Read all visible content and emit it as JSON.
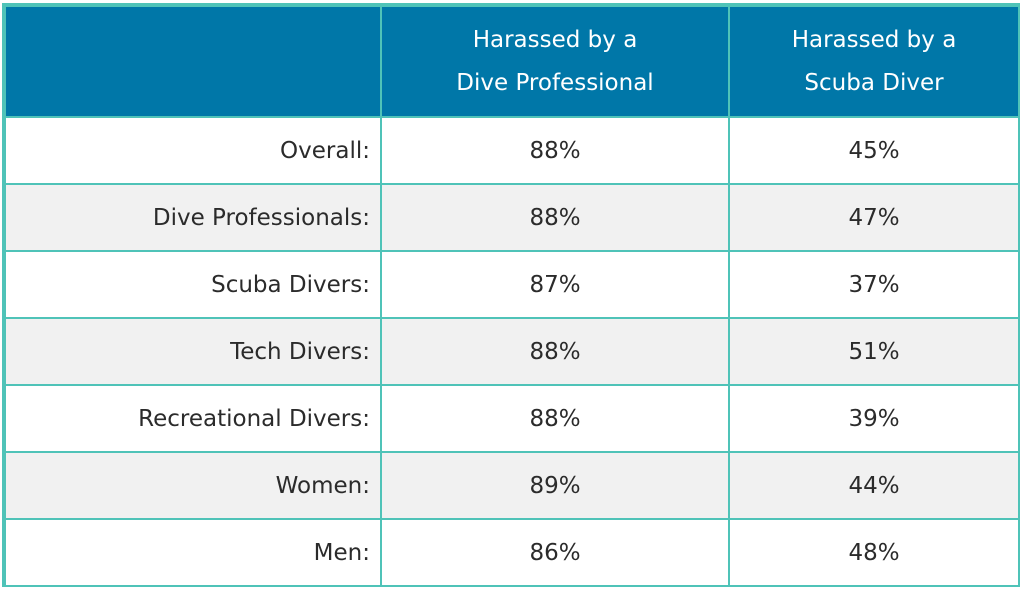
{
  "chart_data": {
    "type": "table",
    "columns": [
      "",
      "Harassed by a Dive Professional",
      "Harassed by a Scuba Diver"
    ],
    "header_lines": [
      [
        "Harassed by a",
        "Dive Professional"
      ],
      [
        "Harassed by a",
        "Scuba Diver"
      ]
    ],
    "rows": [
      {
        "label": "Overall:",
        "values": [
          "88%",
          "45%"
        ]
      },
      {
        "label": "Dive Professionals:",
        "values": [
          "88%",
          "47%"
        ]
      },
      {
        "label": "Scuba Divers:",
        "values": [
          "87%",
          "37%"
        ]
      },
      {
        "label": "Tech Divers:",
        "values": [
          "88%",
          "51%"
        ]
      },
      {
        "label": "Recreational Divers:",
        "values": [
          "88%",
          "39%"
        ]
      },
      {
        "label": "Women:",
        "values": [
          "89%",
          "44%"
        ]
      },
      {
        "label": "Men:",
        "values": [
          "86%",
          "48%"
        ]
      }
    ],
    "series": [
      {
        "name": "Harassed by a Dive Professional",
        "values": [
          88,
          88,
          87,
          88,
          88,
          89,
          86
        ]
      },
      {
        "name": "Harassed by a Scuba Diver",
        "values": [
          45,
          47,
          37,
          51,
          39,
          44,
          48
        ]
      }
    ]
  },
  "colors": {
    "header_bg": "#0077a8",
    "border": "#4fc3b8",
    "stripe": "#f1f1f1"
  }
}
